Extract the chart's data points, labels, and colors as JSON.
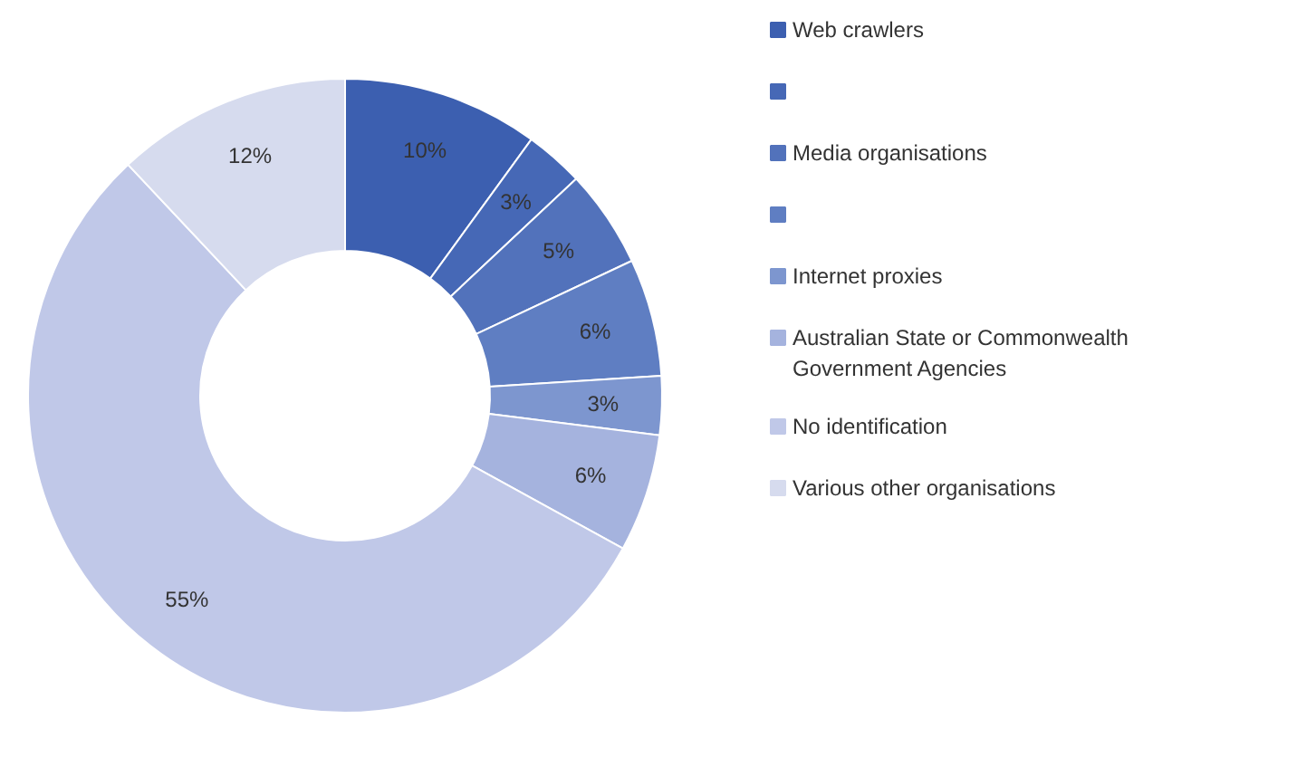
{
  "chart_data": {
    "type": "donut",
    "categories": [
      "Web crawlers",
      null,
      "Media organisations",
      null,
      "Internet proxies",
      "Australian State or Commonwealth Government Agencies",
      "No identification",
      "Various other organisations"
    ],
    "values": [
      10,
      3,
      5,
      6,
      3,
      6,
      55,
      12
    ],
    "colors": [
      "#3c5fb0",
      "#4668b6",
      "#5272bb",
      "#5f7ec2",
      "#7d96cf",
      "#a5b3de",
      "#c0c8e8",
      "#d6dbee"
    ],
    "value_labels": [
      "10%",
      "3%",
      "5%",
      "6%",
      "3%",
      "6%",
      "55%",
      "12%"
    ],
    "legend": "right"
  }
}
